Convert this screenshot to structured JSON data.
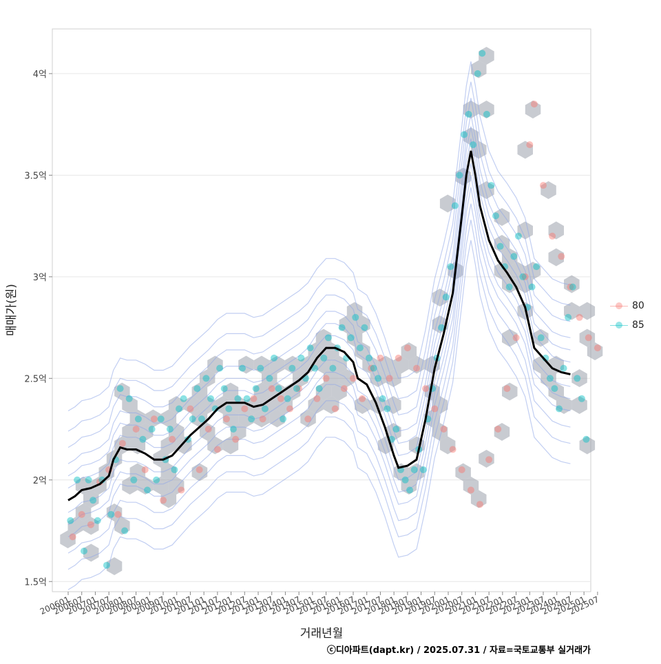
{
  "chart_data": {
    "type": "scatter",
    "xlabel": "거래년월",
    "ylabel": "매매가(원)",
    "caption": "ⓒ디아파트(dapt.kr) / 2025.07.31 / 자료=국토교통부 실거래가",
    "yticks": [
      {
        "v": 1.5,
        "label": "1.5억"
      },
      {
        "v": 2.0,
        "label": "2억"
      },
      {
        "v": 2.5,
        "label": "2.5억"
      },
      {
        "v": 3.0,
        "label": "3억"
      },
      {
        "v": 3.5,
        "label": "3.5억"
      },
      {
        "v": 4.0,
        "label": "4억"
      }
    ],
    "ylim": [
      1.45,
      4.22
    ],
    "xlim": [
      -7,
      231
    ],
    "grid": true,
    "legend_position": "right",
    "xtick_labels": [
      "200601",
      "200607",
      "200701",
      "200707",
      "200801",
      "200807",
      "200901",
      "200907",
      "201001",
      "201007",
      "201101",
      "201107",
      "201201",
      "201207",
      "201301",
      "201307",
      "201401",
      "201407",
      "201501",
      "201507",
      "201601",
      "201607",
      "201701",
      "201707",
      "201801",
      "201807",
      "201901",
      "201907",
      "202001",
      "202007",
      "202101",
      "202107",
      "202201",
      "202207",
      "202301",
      "202307",
      "202401",
      "202407",
      "202501",
      "202507"
    ],
    "series": [
      {
        "name": "80",
        "color": "#F8766D",
        "points": [
          [
            2,
            1.72
          ],
          [
            6,
            1.83
          ],
          [
            10,
            1.78
          ],
          [
            14,
            1.99
          ],
          [
            18,
            2.05
          ],
          [
            22,
            1.83
          ],
          [
            24,
            2.18
          ],
          [
            30,
            2.25
          ],
          [
            34,
            2.05
          ],
          [
            38,
            2.3
          ],
          [
            42,
            1.9
          ],
          [
            46,
            2.2
          ],
          [
            50,
            1.95
          ],
          [
            54,
            2.35
          ],
          [
            58,
            2.05
          ],
          [
            62,
            2.25
          ],
          [
            66,
            2.15
          ],
          [
            70,
            2.3
          ],
          [
            74,
            2.2
          ],
          [
            78,
            2.35
          ],
          [
            82,
            2.4
          ],
          [
            86,
            2.3
          ],
          [
            90,
            2.45
          ],
          [
            94,
            2.4
          ],
          [
            98,
            2.35
          ],
          [
            102,
            2.45
          ],
          [
            106,
            2.3
          ],
          [
            110,
            2.4
          ],
          [
            114,
            2.5
          ],
          [
            118,
            2.35
          ],
          [
            122,
            2.45
          ],
          [
            126,
            2.5
          ],
          [
            130,
            2.4
          ],
          [
            134,
            2.55
          ],
          [
            138,
            2.6
          ],
          [
            142,
            2.5
          ],
          [
            146,
            2.6
          ],
          [
            150,
            2.65
          ],
          [
            154,
            2.55
          ],
          [
            158,
            2.45
          ],
          [
            162,
            2.35
          ],
          [
            166,
            2.25
          ],
          [
            170,
            2.15
          ],
          [
            174,
            2.05
          ],
          [
            178,
            1.95
          ],
          [
            182,
            1.88
          ],
          [
            186,
            2.1
          ],
          [
            190,
            2.25
          ],
          [
            194,
            2.45
          ],
          [
            198,
            2.7
          ],
          [
            202,
            3.0
          ],
          [
            204,
            3.65
          ],
          [
            206,
            3.85
          ],
          [
            210,
            3.45
          ],
          [
            214,
            3.2
          ],
          [
            218,
            3.1
          ],
          [
            222,
            2.95
          ],
          [
            226,
            2.8
          ],
          [
            230,
            2.7
          ],
          [
            234,
            2.65
          ]
        ]
      },
      {
        "name": "85",
        "color": "#00BFC4",
        "points": [
          [
            1,
            1.8
          ],
          [
            4,
            2.0
          ],
          [
            7,
            1.65
          ],
          [
            9,
            2.0
          ],
          [
            11,
            1.9
          ],
          [
            13,
            1.8
          ],
          [
            15,
            2.0
          ],
          [
            17,
            1.58
          ],
          [
            19,
            1.83
          ],
          [
            21,
            2.1
          ],
          [
            23,
            2.45
          ],
          [
            25,
            1.75
          ],
          [
            27,
            2.4
          ],
          [
            29,
            2.0
          ],
          [
            31,
            2.3
          ],
          [
            33,
            2.2
          ],
          [
            35,
            1.95
          ],
          [
            37,
            2.25
          ],
          [
            39,
            2.0
          ],
          [
            41,
            2.3
          ],
          [
            43,
            2.1
          ],
          [
            45,
            2.25
          ],
          [
            47,
            2.05
          ],
          [
            49,
            2.35
          ],
          [
            51,
            2.4
          ],
          [
            53,
            2.2
          ],
          [
            55,
            2.3
          ],
          [
            57,
            2.45
          ],
          [
            59,
            2.3
          ],
          [
            61,
            2.5
          ],
          [
            63,
            2.4
          ],
          [
            65,
            2.35
          ],
          [
            67,
            2.55
          ],
          [
            69,
            2.45
          ],
          [
            71,
            2.35
          ],
          [
            73,
            2.25
          ],
          [
            75,
            2.4
          ],
          [
            77,
            2.55
          ],
          [
            79,
            2.4
          ],
          [
            81,
            2.3
          ],
          [
            83,
            2.45
          ],
          [
            85,
            2.55
          ],
          [
            87,
            2.35
          ],
          [
            89,
            2.5
          ],
          [
            91,
            2.6
          ],
          [
            93,
            2.45
          ],
          [
            95,
            2.3
          ],
          [
            97,
            2.4
          ],
          [
            99,
            2.55
          ],
          [
            101,
            2.45
          ],
          [
            103,
            2.6
          ],
          [
            105,
            2.5
          ],
          [
            107,
            2.65
          ],
          [
            109,
            2.55
          ],
          [
            111,
            2.45
          ],
          [
            113,
            2.6
          ],
          [
            115,
            2.7
          ],
          [
            117,
            2.55
          ],
          [
            119,
            2.65
          ],
          [
            121,
            2.75
          ],
          [
            123,
            2.6
          ],
          [
            125,
            2.7
          ],
          [
            127,
            2.8
          ],
          [
            129,
            2.65
          ],
          [
            131,
            2.75
          ],
          [
            133,
            2.6
          ],
          [
            135,
            2.55
          ],
          [
            137,
            2.5
          ],
          [
            139,
            2.4
          ],
          [
            141,
            2.35
          ],
          [
            143,
            2.2
          ],
          [
            145,
            2.25
          ],
          [
            147,
            2.05
          ],
          [
            149,
            2.0
          ],
          [
            151,
            1.95
          ],
          [
            153,
            2.05
          ],
          [
            155,
            2.15
          ],
          [
            157,
            2.05
          ],
          [
            159,
            2.3
          ],
          [
            161,
            2.45
          ],
          [
            163,
            2.6
          ],
          [
            165,
            2.75
          ],
          [
            167,
            2.9
          ],
          [
            169,
            3.05
          ],
          [
            171,
            3.35
          ],
          [
            173,
            3.5
          ],
          [
            175,
            3.7
          ],
          [
            177,
            3.8
          ],
          [
            179,
            3.65
          ],
          [
            181,
            4.0
          ],
          [
            183,
            4.1
          ],
          [
            185,
            3.8
          ],
          [
            187,
            3.45
          ],
          [
            189,
            3.3
          ],
          [
            191,
            3.15
          ],
          [
            193,
            3.05
          ],
          [
            195,
            2.95
          ],
          [
            197,
            3.1
          ],
          [
            199,
            3.2
          ],
          [
            201,
            3.0
          ],
          [
            203,
            2.85
          ],
          [
            205,
            2.95
          ],
          [
            207,
            3.05
          ],
          [
            209,
            2.7
          ],
          [
            211,
            2.6
          ],
          [
            213,
            2.5
          ],
          [
            215,
            2.45
          ],
          [
            217,
            2.35
          ],
          [
            219,
            2.55
          ],
          [
            221,
            2.8
          ],
          [
            223,
            2.95
          ],
          [
            225,
            2.5
          ],
          [
            227,
            2.4
          ],
          [
            229,
            2.2
          ]
        ]
      }
    ],
    "trend": {
      "name": "moving average",
      "points": [
        [
          0,
          1.9
        ],
        [
          3,
          1.92
        ],
        [
          6,
          1.95
        ],
        [
          10,
          1.96
        ],
        [
          14,
          1.98
        ],
        [
          18,
          2.02
        ],
        [
          20,
          2.1
        ],
        [
          23,
          2.16
        ],
        [
          26,
          2.15
        ],
        [
          30,
          2.15
        ],
        [
          34,
          2.13
        ],
        [
          38,
          2.1
        ],
        [
          42,
          2.1
        ],
        [
          46,
          2.12
        ],
        [
          50,
          2.17
        ],
        [
          54,
          2.22
        ],
        [
          58,
          2.26
        ],
        [
          62,
          2.3
        ],
        [
          66,
          2.35
        ],
        [
          70,
          2.38
        ],
        [
          74,
          2.38
        ],
        [
          78,
          2.38
        ],
        [
          82,
          2.36
        ],
        [
          86,
          2.37
        ],
        [
          90,
          2.4
        ],
        [
          94,
          2.43
        ],
        [
          98,
          2.46
        ],
        [
          102,
          2.49
        ],
        [
          106,
          2.53
        ],
        [
          110,
          2.6
        ],
        [
          114,
          2.65
        ],
        [
          118,
          2.65
        ],
        [
          122,
          2.63
        ],
        [
          126,
          2.58
        ],
        [
          128,
          2.5
        ],
        [
          132,
          2.47
        ],
        [
          136,
          2.38
        ],
        [
          140,
          2.26
        ],
        [
          144,
          2.12
        ],
        [
          146,
          2.06
        ],
        [
          150,
          2.07
        ],
        [
          154,
          2.1
        ],
        [
          158,
          2.3
        ],
        [
          162,
          2.55
        ],
        [
          166,
          2.72
        ],
        [
          170,
          2.92
        ],
        [
          174,
          3.3
        ],
        [
          176,
          3.5
        ],
        [
          178,
          3.62
        ],
        [
          180,
          3.5
        ],
        [
          182,
          3.35
        ],
        [
          186,
          3.18
        ],
        [
          190,
          3.08
        ],
        [
          194,
          3.02
        ],
        [
          198,
          2.95
        ],
        [
          202,
          2.85
        ],
        [
          204,
          2.75
        ],
        [
          206,
          2.65
        ],
        [
          210,
          2.6
        ],
        [
          214,
          2.55
        ],
        [
          218,
          2.53
        ],
        [
          222,
          2.52
        ]
      ]
    }
  }
}
